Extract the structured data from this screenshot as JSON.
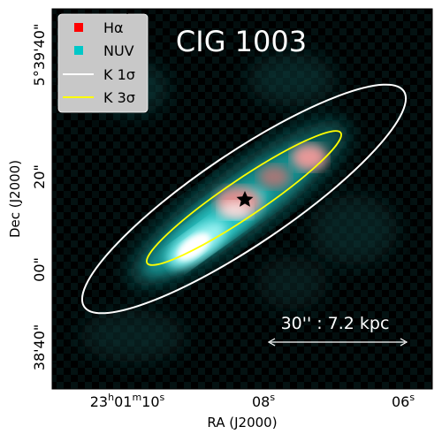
{
  "figure": {
    "object_name": "CIG 1003",
    "xlabel": "RA (J2000)",
    "ylabel": "Dec (J2000)",
    "scale_bar_label": "30'' : 7.2 kpc",
    "ra_ticks": [
      {
        "h": "23",
        "m": "01",
        "s": "10",
        "label": "23h01m10s"
      },
      {
        "s": "08",
        "label": "08s"
      },
      {
        "s": "06",
        "label": "06s"
      }
    ],
    "dec_ticks": [
      {
        "label": "5°39'40\""
      },
      {
        "label": "20\""
      },
      {
        "label": "00\""
      },
      {
        "label": "38'40\""
      }
    ],
    "legend": [
      {
        "label": "Hα",
        "marker": "square",
        "color": "#ff0000"
      },
      {
        "label": "NUV",
        "marker": "square",
        "color": "#00c8c8"
      },
      {
        "label": "K 1σ",
        "marker": "line",
        "color": "#ffffff"
      },
      {
        "label": "K 3σ",
        "marker": "line",
        "color": "#ffff00"
      }
    ],
    "colors": {
      "halpha": "#ff0000",
      "nuv": "#00c8c8",
      "k1sigma": "#ffffff",
      "k3sigma": "#ffff00",
      "background": "#000000"
    }
  }
}
